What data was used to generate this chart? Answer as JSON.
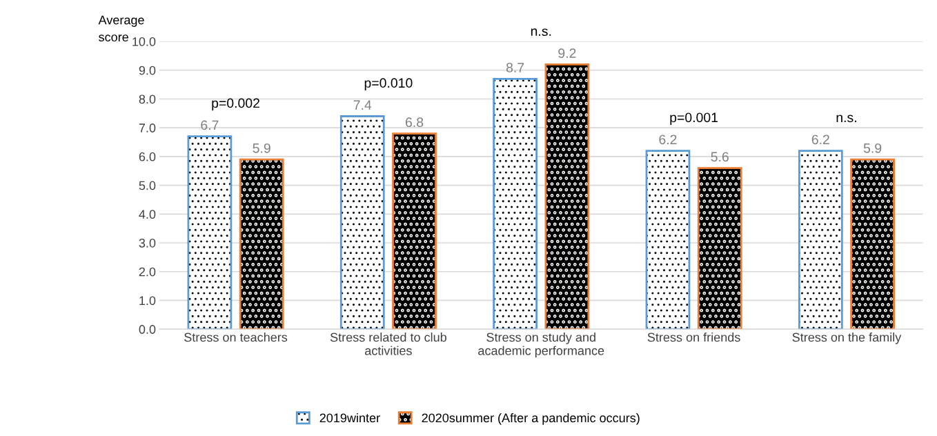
{
  "chart_data": {
    "type": "bar",
    "ylabel": "Average score",
    "categories": [
      "Stress on teachers",
      "Stress related to club activities",
      "Stress on study and academic performance",
      "Stress on friends",
      "Stress on the family"
    ],
    "series": [
      {
        "name": "2019winter",
        "color": "#5b9bd5",
        "values": [
          6.7,
          7.4,
          8.7,
          6.2,
          6.2
        ]
      },
      {
        "name": "2020summer (After a pandemic occurs)",
        "color": "#ed7d31",
        "values": [
          5.9,
          6.8,
          9.2,
          5.6,
          5.9
        ]
      }
    ],
    "ylim": [
      0,
      10
    ],
    "yticks": [
      {
        "value": 0,
        "label": "0.0"
      },
      {
        "value": 1,
        "label": "1.0"
      },
      {
        "value": 2,
        "label": "2.0"
      },
      {
        "value": 3,
        "label": "3.0"
      },
      {
        "value": 4,
        "label": "4.0"
      },
      {
        "value": 5,
        "label": "5.0"
      },
      {
        "value": 6,
        "label": "6.0"
      },
      {
        "value": 7,
        "label": "7.0"
      },
      {
        "value": 8,
        "label": "8.0"
      },
      {
        "value": 9,
        "label": "9.0"
      },
      {
        "value": 10,
        "label": "10.0"
      }
    ],
    "grid": "y",
    "legend": "bottom",
    "data_labels": true,
    "annotations": [
      "p=0.002",
      "p=0.010",
      "n.s.",
      "p=0.001",
      "n.s."
    ]
  }
}
